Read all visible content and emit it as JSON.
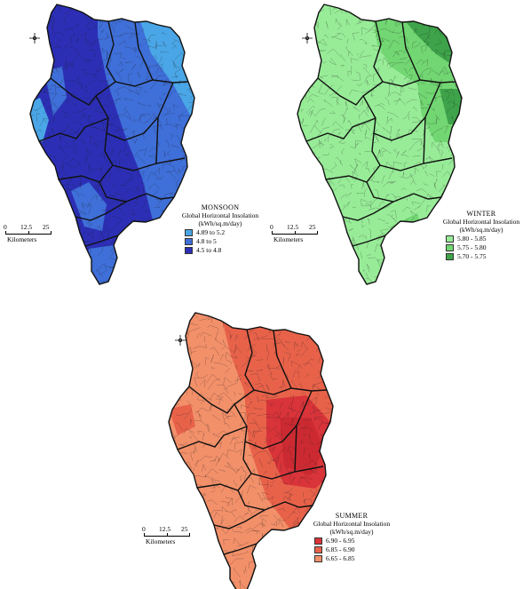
{
  "colors": {
    "outline": "#111111",
    "taluk_lines": "#1a1a1a"
  },
  "maps": [
    {
      "id": "monsoon",
      "season": "MONSOON",
      "subtitle": "Global Horizontal Insolation",
      "units": "(kWh/sq.m/day)",
      "scale": {
        "ticks": [
          "0",
          "12.5",
          "25"
        ],
        "unit": "Kilometers"
      },
      "north_icon": "north-compass-icon",
      "legend": [
        {
          "label": "4.89 to 5.2",
          "color": "#4aa6e6"
        },
        {
          "label": "4.8  to 5",
          "color": "#3f6fd8"
        },
        {
          "label": "4.5  to 4.8",
          "color": "#2c2fb5"
        }
      ]
    },
    {
      "id": "winter",
      "season": "WINTER",
      "subtitle": "Global Horizontal Insolation",
      "units": "(kWh/sq.m/day)",
      "scale": {
        "ticks": [
          "0",
          "12.5",
          "25"
        ],
        "unit": "Kilometers"
      },
      "north_icon": "north-compass-icon",
      "legend": [
        {
          "label": "5.80 - 5.85",
          "color": "#98ec98"
        },
        {
          "label": "5.75 - 5.80",
          "color": "#72d672"
        },
        {
          "label": "5.70 - 5.75",
          "color": "#3ea34a"
        }
      ]
    },
    {
      "id": "summer",
      "season": "SUMMER",
      "subtitle": "Global Horizontal Insolation",
      "units": "(kWh/sq.m/day)",
      "scale": {
        "ticks": [
          "0",
          "12.5",
          "25"
        ],
        "unit": "Kilometers"
      },
      "north_icon": "north-compass-icon",
      "legend": [
        {
          "label": "6.90 - 6.95",
          "color": "#d8343a"
        },
        {
          "label": "6.85 - 6.90",
          "color": "#e8624a"
        },
        {
          "label": "6.65 - 6.85",
          "color": "#f2906a"
        }
      ]
    }
  ]
}
